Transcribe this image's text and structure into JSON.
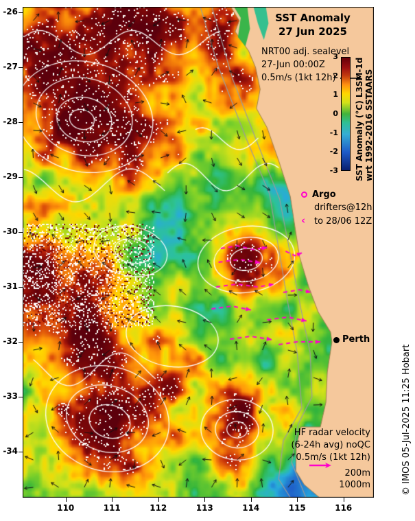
{
  "title": {
    "line1": "SST Anomaly",
    "line2": "27 Jun 2025"
  },
  "sealevel_legend": {
    "line1": "NRT00 adj. sealevel",
    "line2": "27-Jun 00:00Z",
    "line3": "0.5m/s (1kt 12h)"
  },
  "colorbar": {
    "ticks": [
      "3",
      "2",
      "1",
      "0",
      "-1",
      "-2",
      "-3"
    ],
    "label_line1": "SST Anomaly (°C) L3SM-1d",
    "label_line2": "wrt 1992-2016 SSTAARS"
  },
  "argo_legend": {
    "title": "Argo",
    "line2": "drifters@12h",
    "line3": "to 28/06 12Z"
  },
  "city": {
    "name": "Perth"
  },
  "hf_legend": {
    "line1": "HF radar velocity",
    "line2": "(6-24h avg) noQC",
    "line3": "0.5m/s (1kt 12h)",
    "isobath1": "200m",
    "isobath2": "1000m"
  },
  "copyright": "© IMOS 05-Jul-2025 11:25 Hobart",
  "axes": {
    "x_ticks": [
      "110",
      "111",
      "112",
      "113",
      "114",
      "115",
      "116"
    ],
    "y_ticks": [
      "-26",
      "-27",
      "-28",
      "-29",
      "-30",
      "-31",
      "-32",
      "-33",
      "-34"
    ]
  },
  "colors": {
    "land": "#f5c89c",
    "drifter_magenta": "#ff00cc",
    "contour_white": "#ffffff",
    "isobath_gray": "#9b9b9b",
    "arrow_black": "#111111"
  },
  "chart_data": {
    "type": "heatmap",
    "title": "SST Anomaly 27 Jun 2025",
    "x_ticks": [
      110,
      111,
      112,
      113,
      114,
      115,
      116
    ],
    "y_ticks": [
      -26,
      -27,
      -28,
      -29,
      -30,
      -31,
      -32,
      -33,
      -34
    ],
    "colorbar": {
      "min": -3,
      "max": 3,
      "ticks": [
        3,
        2,
        1,
        0,
        -1,
        -2,
        -3
      ],
      "label": "SST Anomaly (°C) L3SM-1d wrt 1992-2016 SSTAARS"
    },
    "overlays": [
      "NRT00 adj. sealevel current vectors 0.5m/s (1kt 12h)",
      "Argo drifters@12h to 28/06 12Z (magenta tracks)",
      "HF radar velocity (6-24h avg) noQC 0.5m/s (1kt 12h)",
      "Isobaths 200m and 1000m",
      "Perth marker"
    ]
  }
}
